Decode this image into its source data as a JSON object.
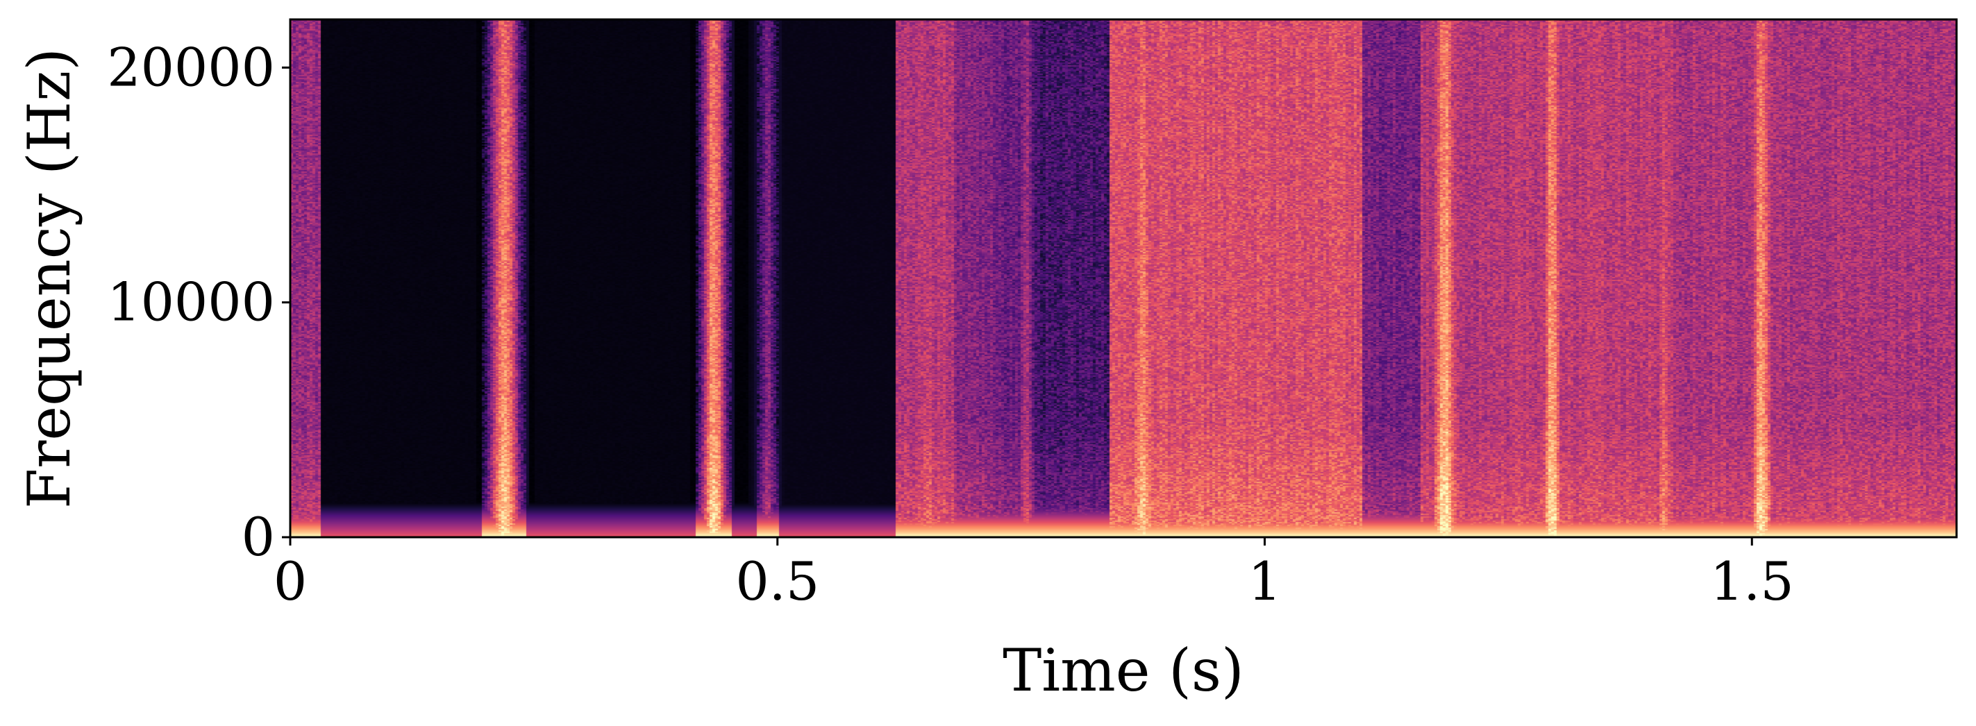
{
  "chart_data": {
    "type": "heatmap",
    "title": "",
    "xlabel": "Time (s)",
    "ylabel": "Frequency (Hz)",
    "xlim": [
      0,
      1.71
    ],
    "ylim": [
      0,
      22050
    ],
    "x_ticks": [
      {
        "value": 0,
        "label": "0"
      },
      {
        "value": 0.5,
        "label": "0.5"
      },
      {
        "value": 1,
        "label": "1"
      },
      {
        "value": 1.5,
        "label": "1.5"
      }
    ],
    "y_ticks": [
      {
        "value": 0,
        "label": "0"
      },
      {
        "value": 10000,
        "label": "10000"
      },
      {
        "value": 20000,
        "label": "20000"
      }
    ],
    "colormap": "magma",
    "grid": false,
    "regions": [
      {
        "t0": 0.0,
        "t1": 0.03,
        "level": 0.42
      },
      {
        "t0": 0.03,
        "t1": 0.19,
        "level": 0.02
      },
      {
        "t0": 0.19,
        "t1": 0.25,
        "level": 0.0
      },
      {
        "t0": 0.25,
        "t1": 0.41,
        "level": 0.02
      },
      {
        "t0": 0.41,
        "t1": 0.47,
        "level": 0.0
      },
      {
        "t0": 0.47,
        "t1": 0.62,
        "level": 0.03
      },
      {
        "t0": 0.62,
        "t1": 0.68,
        "level": 0.5
      },
      {
        "t0": 0.68,
        "t1": 0.72,
        "level": 0.38
      },
      {
        "t0": 0.72,
        "t1": 0.76,
        "level": 0.32
      },
      {
        "t0": 0.76,
        "t1": 0.84,
        "level": 0.22
      },
      {
        "t0": 0.84,
        "t1": 1.1,
        "level": 0.6
      },
      {
        "t0": 1.1,
        "t1": 1.16,
        "level": 0.35
      },
      {
        "t0": 1.16,
        "t1": 1.25,
        "level": 0.5
      },
      {
        "t0": 1.25,
        "t1": 1.42,
        "level": 0.52
      },
      {
        "t0": 1.42,
        "t1": 1.71,
        "level": 0.48
      }
    ],
    "bursts": [
      {
        "t": 0.22,
        "width": 0.03,
        "level": 0.82
      },
      {
        "t": 0.435,
        "width": 0.025,
        "level": 0.84
      },
      {
        "t": 0.49,
        "width": 0.02,
        "level": 0.38
      },
      {
        "t": 0.655,
        "width": 0.03,
        "level": 0.6
      },
      {
        "t": 0.755,
        "width": 0.02,
        "level": 0.5
      },
      {
        "t": 0.875,
        "width": 0.04,
        "level": 0.76
      },
      {
        "t": 1.185,
        "width": 0.03,
        "level": 0.88
      },
      {
        "t": 1.295,
        "width": 0.025,
        "level": 0.86
      },
      {
        "t": 1.41,
        "width": 0.02,
        "level": 0.68
      },
      {
        "t": 1.51,
        "width": 0.025,
        "level": 0.84
      }
    ],
    "low_band": {
      "f_max": 1500,
      "level": 0.9
    }
  }
}
